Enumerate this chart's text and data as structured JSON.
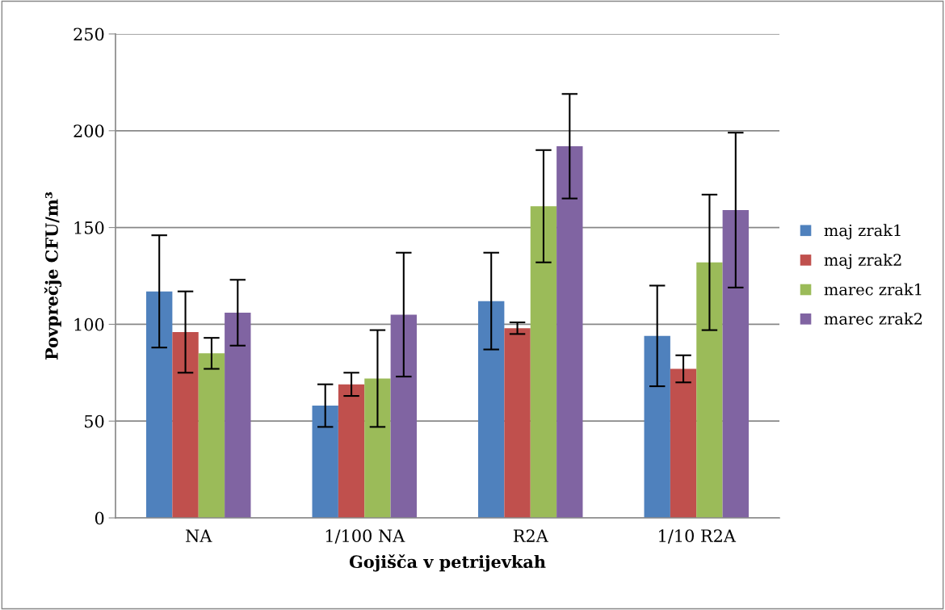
{
  "chart_data": {
    "type": "bar",
    "xlabel": "Gojišča v petrijevkah",
    "ylabel": "Povprečje CFU/m³",
    "categories": [
      "NA",
      "1/100 NA",
      "R2A",
      "1/10 R2A"
    ],
    "series": [
      {
        "name": "maj zrak1",
        "color": "#4f81bd",
        "values": [
          117,
          58,
          112,
          94
        ],
        "errors": [
          29,
          11,
          25,
          26
        ]
      },
      {
        "name": "maj zrak2",
        "color": "#c0504d",
        "values": [
          96,
          69,
          98,
          77
        ],
        "errors": [
          21,
          6,
          3,
          7
        ]
      },
      {
        "name": "marec zrak1",
        "color": "#9bbb59",
        "values": [
          85,
          72,
          161,
          132
        ],
        "errors": [
          8,
          25,
          29,
          35
        ]
      },
      {
        "name": "marec zrak2",
        "color": "#8064a2",
        "values": [
          106,
          105,
          192,
          159
        ],
        "errors": [
          17,
          32,
          27,
          40
        ]
      }
    ],
    "ylim": [
      0,
      250
    ],
    "yticks": [
      0,
      50,
      100,
      150,
      200,
      250
    ],
    "grid": "y",
    "legend": "right"
  }
}
